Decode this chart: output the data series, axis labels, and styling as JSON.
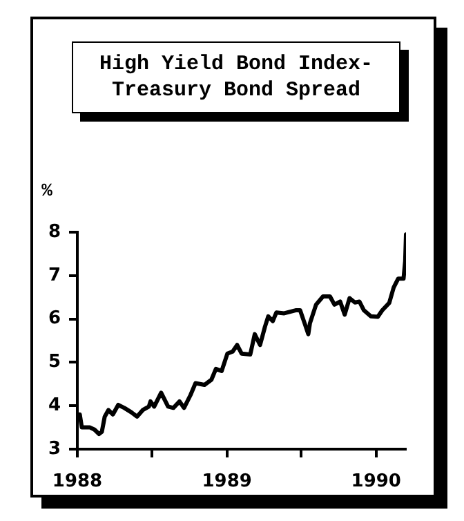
{
  "chart_data": {
    "type": "line",
    "title": "High Yield Bond Index-\nTreasury Bond Spread",
    "ylabel": "%",
    "x": [
      "1988-01-07",
      "1988-01-12",
      "1988-02-01",
      "1988-02-12",
      "1988-02-23",
      "1988-03-01",
      "1988-03-08",
      "1988-03-17",
      "1988-03-28",
      "1988-04-10",
      "1988-04-25",
      "1988-05-12",
      "1988-05-26",
      "1988-06-09",
      "1988-06-24",
      "1988-06-28",
      "1988-07-07",
      "1988-07-24",
      "1988-08-10",
      "1988-08-23",
      "1988-09-07",
      "1988-09-18",
      "1988-10-04",
      "1988-10-16",
      "1988-11-07",
      "1988-11-24",
      "1988-12-05",
      "1988-12-19",
      "1989-01-02",
      "1989-01-15",
      "1989-01-26",
      "1989-02-06",
      "1989-02-27",
      "1989-03-10",
      "1989-03-23",
      "1989-04-04",
      "1989-04-12",
      "1989-04-23",
      "1989-05-02",
      "1989-05-21",
      "1989-06-18",
      "1989-06-29",
      "1989-07-10",
      "1989-07-19",
      "1989-07-23",
      "1989-08-07",
      "1989-08-24",
      "1989-09-10",
      "1989-09-21",
      "1989-10-05",
      "1989-10-16",
      "1989-10-28",
      "1989-11-10",
      "1989-11-21",
      "1989-12-02",
      "1989-12-19",
      "1990-01-05",
      "1990-01-16",
      "1990-02-02",
      "1990-02-13",
      "1990-02-24",
      "1990-03-09",
      "1990-03-13",
      "1990-03-15"
    ],
    "values": [
      3.8,
      3.5,
      3.5,
      3.45,
      3.35,
      3.4,
      3.75,
      3.9,
      3.8,
      4.02,
      3.95,
      3.85,
      3.75,
      3.9,
      3.98,
      4.1,
      3.98,
      4.3,
      3.98,
      3.95,
      4.1,
      3.95,
      4.25,
      4.52,
      4.48,
      4.6,
      4.85,
      4.8,
      5.2,
      5.25,
      5.4,
      5.2,
      5.18,
      5.65,
      5.4,
      5.82,
      6.06,
      5.95,
      6.15,
      6.13,
      6.2,
      6.2,
      5.9,
      5.65,
      5.9,
      6.33,
      6.52,
      6.52,
      6.33,
      6.4,
      6.1,
      6.48,
      6.38,
      6.4,
      6.2,
      6.06,
      6.05,
      6.2,
      6.37,
      6.73,
      6.93,
      6.93,
      7.33,
      7.95
    ],
    "color": "#000000",
    "line_style": "solid",
    "marker": "none",
    "grid": false,
    "legend": false,
    "xlim": [
      "1988-01-01",
      "1990-03-15"
    ],
    "xticks": [
      {
        "value": "1988-01",
        "label": "1988"
      },
      {
        "value": "1988-07",
        "label": null
      },
      {
        "value": "1989-01",
        "label": "1989"
      },
      {
        "value": "1989-07",
        "label": null
      },
      {
        "value": "1990-01",
        "label": "1990"
      }
    ],
    "ylim": [
      3,
      8
    ],
    "yticks": [
      3,
      4,
      5,
      6,
      7,
      8
    ]
  }
}
